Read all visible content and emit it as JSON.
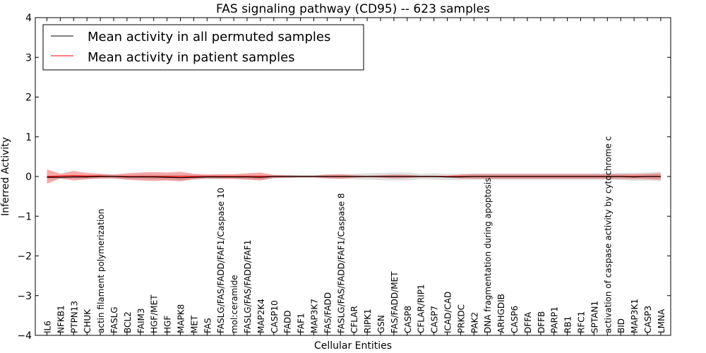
{
  "chart_data": {
    "type": "line",
    "title": "FAS signaling pathway (CD95) -- 623 samples",
    "xlabel": "Cellular Entities",
    "ylabel": "Inferred Activity",
    "ylim": [
      -4,
      4
    ],
    "yticks": [
      "4",
      "3",
      "2",
      "1",
      "0",
      "−1",
      "−2",
      "−3",
      "−4"
    ],
    "ytick_values": [
      4,
      3,
      2,
      1,
      0,
      -1,
      -2,
      -3,
      -4
    ],
    "grid": false,
    "legend_position": "top-left",
    "categories": [
      "IL6",
      "NFKB1",
      "PTPN13",
      "CHUK",
      "actin filament polymerization",
      "FASLG",
      "BCL2",
      "FAIM3",
      "HGF/MET",
      "HGF",
      "MAPK8",
      "MET",
      "FAS",
      "FASLG/FAS/FADD/FAF1/Caspase 10",
      "mol:ceramide",
      "FASLG/FAS/FADD/FAF1",
      "MAP2K4",
      "CASP10",
      "FADD",
      "FAF1",
      "MAP3K7",
      "FAS/FADD",
      "FASLG/FAS/FADD/FAF1/Caspase 8",
      "CFLAR",
      "RIPK1",
      "GSN",
      "FAS/FADD/MET",
      "CASP8",
      "CFLAR/RIP1",
      "CASP7",
      "ICAD/CAD",
      "PRKDC",
      "PAK2",
      "DNA fragmentation during apoptosis",
      "ARHGDIB",
      "CASP6",
      "DFFA",
      "DFFB",
      "PARP1",
      "RB1",
      "RFC1",
      "SPTAN1",
      "activation of caspase activity by cytochrome c",
      "BID",
      "MAP3K1",
      "CASP3",
      "LMNA"
    ],
    "series": [
      {
        "name": "Mean activity in all permuted samples",
        "color": "#000000",
        "values": [
          -0.02,
          -0.02,
          -0.01,
          -0.01,
          0.0,
          0.0,
          -0.01,
          -0.01,
          -0.01,
          -0.02,
          -0.03,
          -0.02,
          -0.01,
          -0.01,
          -0.01,
          -0.01,
          -0.02,
          0.0,
          0.0,
          0.0,
          0.0,
          0.0,
          0.0,
          0.0,
          0.0,
          0.0,
          0.0,
          0.0,
          0.0,
          0.0,
          -0.01,
          -0.01,
          0.0,
          0.0,
          0.0,
          0.0,
          0.0,
          0.0,
          0.0,
          0.0,
          0.0,
          0.0,
          0.0,
          0.0,
          -0.01,
          0.0,
          0.0
        ],
        "band": [
          0.04,
          0.04,
          0.04,
          0.05,
          0.05,
          0.05,
          0.05,
          0.06,
          0.06,
          0.06,
          0.07,
          0.06,
          0.06,
          0.05,
          0.05,
          0.05,
          0.06,
          0.04,
          0.04,
          0.04,
          0.04,
          0.05,
          0.05,
          0.07,
          0.08,
          0.09,
          0.1,
          0.1,
          0.07,
          0.08,
          0.08,
          0.08,
          0.08,
          0.08,
          0.08,
          0.08,
          0.08,
          0.08,
          0.08,
          0.08,
          0.08,
          0.08,
          0.08,
          0.09,
          0.1,
          0.1,
          0.12
        ]
      },
      {
        "name": "Mean activity in patient samples",
        "color": "#ff0000",
        "values": [
          0.0,
          0.01,
          0.02,
          0.01,
          0.01,
          0.0,
          0.0,
          0.0,
          0.0,
          0.0,
          0.0,
          0.0,
          0.0,
          0.0,
          0.0,
          0.0,
          0.0,
          0.0,
          0.0,
          0.0,
          0.0,
          0.0,
          0.0,
          0.0,
          0.0,
          0.0,
          0.0,
          0.0,
          0.0,
          0.0,
          0.0,
          0.0,
          0.0,
          0.0,
          0.0,
          0.0,
          0.0,
          0.0,
          0.0,
          0.0,
          0.0,
          0.0,
          0.0,
          0.0,
          0.0,
          0.0,
          0.0
        ],
        "band": [
          0.18,
          0.06,
          0.12,
          0.08,
          0.06,
          0.05,
          0.08,
          0.1,
          0.11,
          0.1,
          0.12,
          0.07,
          0.05,
          0.06,
          0.06,
          0.08,
          0.1,
          0.04,
          0.03,
          0.02,
          0.02,
          0.05,
          0.06,
          0.03,
          0.02,
          0.03,
          0.05,
          0.04,
          0.02,
          0.02,
          0.02,
          0.05,
          0.06,
          0.06,
          0.06,
          0.06,
          0.06,
          0.06,
          0.06,
          0.06,
          0.06,
          0.06,
          0.06,
          0.06,
          0.06,
          0.07,
          0.08
        ]
      }
    ]
  }
}
